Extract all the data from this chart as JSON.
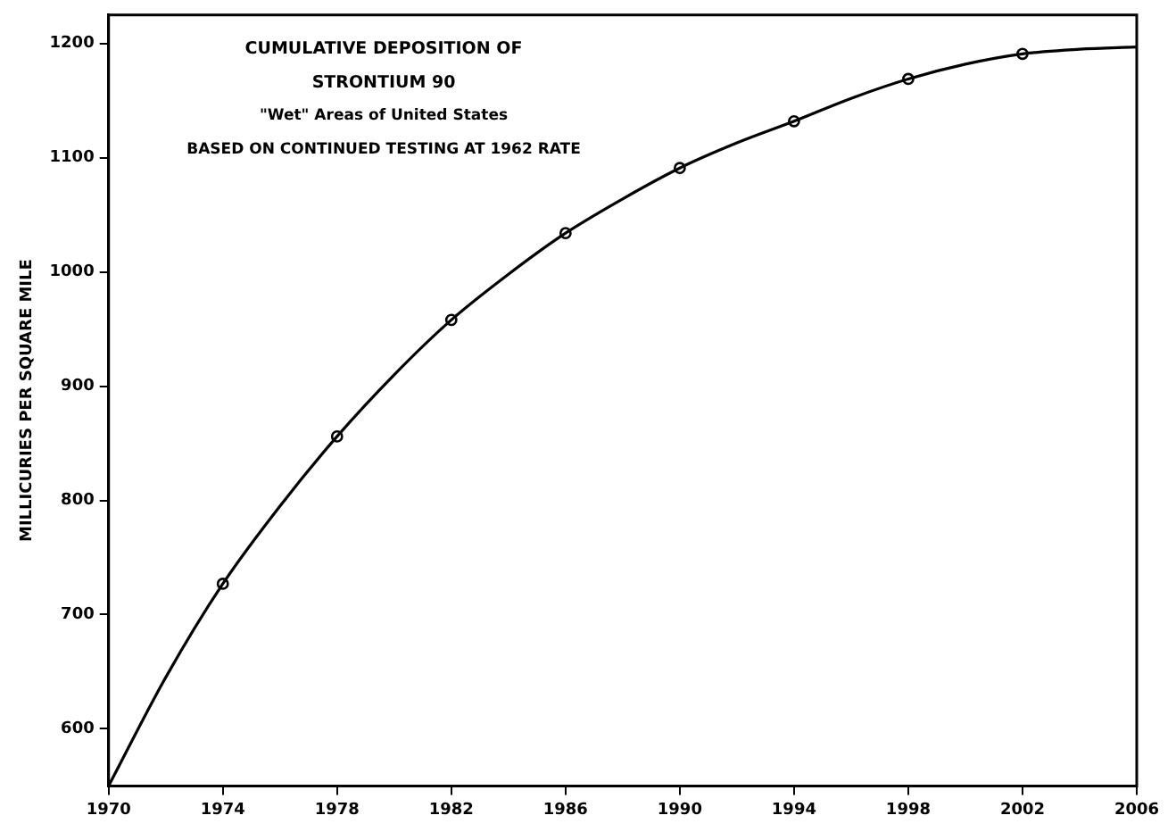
{
  "chart_data": {
    "type": "line",
    "title": "CUMULATIVE DEPOSITION OF STRONTIUM 90",
    "subtitle": "\"Wet\" Areas of United States",
    "annotations": [
      "BASED ON CONTINUED TESTING AT 1962 RATE"
    ],
    "ylabel": "MILLICURIES PER SQUARE MILE",
    "series": [
      {
        "type": "line",
        "color": "#000000",
        "marker": "none",
        "x": [
          1970,
          1972,
          1974,
          1976,
          1978,
          1980,
          1982,
          1984,
          1986,
          1988,
          1990,
          1992,
          1994,
          1996,
          1998,
          2000,
          2002,
          2004,
          2006
        ],
        "values": [
          550,
          645,
          727,
          795,
          856,
          910,
          958,
          998,
          1034,
          1064,
          1091,
          1113,
          1132,
          1152,
          1169,
          1182,
          1191,
          1195,
          1197
        ]
      },
      {
        "type": "scatter",
        "color": "#000000",
        "marker": "circle",
        "x": [
          1974,
          1978,
          1982,
          1986,
          1990,
          1994,
          1998,
          2002
        ],
        "values": [
          727,
          856,
          958,
          1034,
          1091,
          1132,
          1169,
          1191
        ]
      }
    ],
    "xlim": [
      1970,
      2006
    ],
    "xticks": [
      1970,
      1974,
      1978,
      1982,
      1986,
      1990,
      1994,
      1998,
      2002,
      2006
    ],
    "ylim": [
      550,
      1225
    ],
    "yticks": [
      600,
      700,
      800,
      900,
      1000,
      1100,
      1200
    ],
    "grid": false,
    "legend": false
  }
}
